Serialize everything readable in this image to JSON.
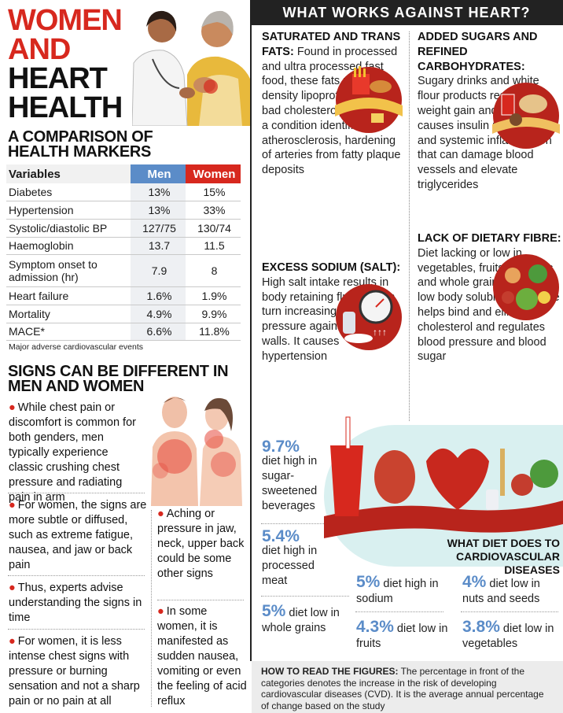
{
  "title": {
    "line1": "WOMEN",
    "line2": "AND",
    "line3": "HEART",
    "line4": "HEALTH"
  },
  "comparison": {
    "heading_line1": "A COMPARISON OF",
    "heading_line2": "HEALTH MARKERS",
    "col_variables": "Variables",
    "col_men": "Men",
    "col_women": "Women",
    "rows": [
      {
        "label": "Diabetes",
        "men": "13%",
        "women": "15%"
      },
      {
        "label": "Hypertension",
        "men": "13%",
        "women": "33%"
      },
      {
        "label": "Systolic/diastolic BP",
        "men": "127/75",
        "women": "130/74"
      },
      {
        "label": "Haemoglobin",
        "men": "13.7",
        "women": "11.5"
      },
      {
        "label": "Symptom onset to admission (hr)",
        "men": "7.9",
        "women": "8"
      },
      {
        "label": "Heart failure",
        "men": "1.6%",
        "women": "1.9%"
      },
      {
        "label": "Mortality",
        "men": "4.9%",
        "women": "9.9%"
      },
      {
        "label": "MACE*",
        "men": "6.6%",
        "women": "11.8%"
      }
    ],
    "footnote": "Major adverse cardiovascular events"
  },
  "signs": {
    "heading_line1": "SIGNS CAN BE DIFFERENT IN",
    "heading_line2": "MEN AND WOMEN",
    "b1": "While chest pain or discomfort is common for both genders, men typically experience classic crushing chest pressure and radiating pain in arm",
    "b2": "For women, the signs are more subtle or diffused, such as extreme fatigue, nausea, and jaw or back pain",
    "b3": "Thus, experts advise understanding the signs in time",
    "b4": "For women, it is less intense chest signs with pressure or burning sensation and not a sharp pain or no pain at all",
    "b5": "Aching or pressure in jaw, neck, upper back could be some other signs",
    "b6": "In some women, it is manifested as sudden nausea, vomiting or even the feeling of acid reflux"
  },
  "works_against": {
    "header": "WHAT WORKS AGAINST HEART?",
    "sat_head": "SATURATED AND TRANS FATS:",
    "sat_body": "Found in processed and ultra processed fast food, these fats raise low-density lipoprotein (LDL or bad cholesterol). It leads to a condition identified as atherosclerosis, hardening of arteries from fatty plaque deposits",
    "sodium_head": "EXCESS SODIUM (SALT):",
    "sodium_body": "High salt intake results in body retaining fluid, and in turn increasing blood pressure against artery walls. It causes hypertension",
    "sugar_head": "ADDED SUGARS AND REFINED CARBOHYDRATES:",
    "sugar_body": "Sugary drinks and white flour products result in weight gain and obesity. It causes insulin resistance and systemic inflammation that can damage blood vessels and elevate triglycerides",
    "fibre_head": "LACK OF DIETARY FIBRE:",
    "fibre_body": "Diet lacking or low in vegetables, fruits, legumes and whole grains results in low body soluble fibre. Fibre helps bind and eliminate cholesterol and regulates blood pressure and blood sugar"
  },
  "diet_stats": {
    "panel_label_line1": "WHAT DIET DOES TO",
    "panel_label_line2": "CARDIOVASCULAR DISEASES",
    "s1_pct": "9.7%",
    "s1_text": "diet high in sugar-sweetened beverages",
    "s2_pct": "5.4%",
    "s2_text": "diet high in processed meat",
    "s3_pct": "5%",
    "s3_text": "diet low in whole grains",
    "s4_pct": "5%",
    "s4_text": "diet high in sodium",
    "s5_pct": "4.3%",
    "s5_text": "diet low in fruits",
    "s6_pct": "4%",
    "s6_text": "diet low in nuts and seeds",
    "s7_pct": "3.8%",
    "s7_text": "diet low in vegetables"
  },
  "how_to_read": {
    "label": "HOW TO READ THE FIGURES:",
    "text": "The percentage in front of the categories denotes the increase in the risk of developing cardiovascular diseases (CVD). It is the average annual percentage of change based on the study"
  },
  "colors": {
    "accent_red": "#d7281e",
    "accent_blue": "#5b8cc8",
    "panel_teal": "#d9f0f0"
  }
}
